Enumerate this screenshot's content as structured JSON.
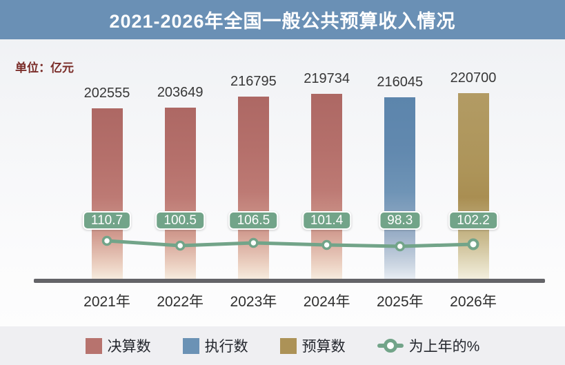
{
  "header": {
    "title": "2021-2026年全国一般公共预算收入情况"
  },
  "unit_label": "单位：亿元",
  "colors": {
    "title_bar": "#6a90b5",
    "title_text": "#ffffff",
    "unit_text": "#7a2c28",
    "bar_final": "#b7736e",
    "bar_execution": "#6b92b5",
    "bar_budget": "#ac9257",
    "line_green": "#72a489",
    "axis": "#646468",
    "legend_bg": "#efeff2"
  },
  "chart_data": {
    "type": "bar",
    "title": "2021-2026年全国一般公共预算收入情况",
    "xlabel": "",
    "ylabel": "单位：亿元",
    "ylim": [
      0,
      230000
    ],
    "grid": false,
    "legend_position": "bottom",
    "categories": [
      "2021年",
      "2022年",
      "2023年",
      "2024年",
      "2025年",
      "2026年"
    ],
    "series": [
      {
        "name": "决算数",
        "type": "bar",
        "color": "#b7736e",
        "values": [
          202555,
          203649,
          216795,
          219734,
          null,
          null
        ]
      },
      {
        "name": "执行数",
        "type": "bar",
        "color": "#6b92b5",
        "values": [
          null,
          null,
          null,
          null,
          216045,
          null
        ]
      },
      {
        "name": "预算数",
        "type": "bar",
        "color": "#ac9257",
        "values": [
          null,
          null,
          null,
          null,
          null,
          220700
        ]
      },
      {
        "name": "为上年的%",
        "type": "line",
        "color": "#72a489",
        "values": [
          110.7,
          100.5,
          106.5,
          101.4,
          98.3,
          102.2
        ]
      }
    ]
  },
  "legend": {
    "items": [
      {
        "label": "决算数",
        "swatch": "bar",
        "color": "#b7736e"
      },
      {
        "label": "执行数",
        "swatch": "bar",
        "color": "#6b92b5"
      },
      {
        "label": "预算数",
        "swatch": "bar",
        "color": "#ac9257"
      },
      {
        "label": "为上年的%",
        "swatch": "line-marker",
        "color": "#72a489"
      }
    ]
  }
}
